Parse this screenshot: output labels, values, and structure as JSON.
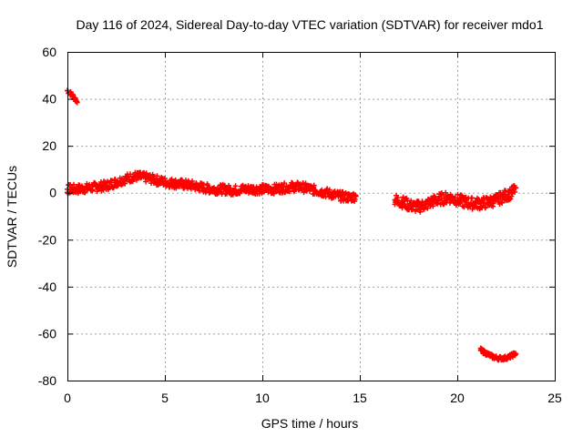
{
  "chart_data": {
    "type": "scatter",
    "title": "Day 116 of 2024, Sidereal Day-to-day VTEC variation (SDTVAR) for receiver mdo1",
    "xlabel": "GPS time / hours",
    "ylabel": "SDTVAR / TECUs",
    "xlim": [
      0,
      25
    ],
    "ylim": [
      -80,
      60
    ],
    "xticks": [
      0,
      5,
      10,
      15,
      20,
      25
    ],
    "yticks": [
      -80,
      -60,
      -40,
      -20,
      0,
      20,
      40,
      60
    ],
    "grid": true,
    "marker": "+",
    "color": "#ff0000",
    "series": [
      {
        "name": "seg1",
        "spread": 1.0,
        "points": [
          [
            0.0,
            43.5
          ],
          [
            0.2,
            42
          ],
          [
            0.4,
            40
          ],
          [
            0.5,
            38.5
          ]
        ]
      },
      {
        "name": "seg2",
        "spread": 2.0,
        "points": [
          [
            0.0,
            1.5
          ],
          [
            0.5,
            1.5
          ],
          [
            1.0,
            2
          ],
          [
            1.5,
            2.5
          ],
          [
            2.0,
            3
          ],
          [
            2.5,
            4.5
          ],
          [
            3.0,
            6
          ],
          [
            3.5,
            7
          ],
          [
            4.0,
            6.5
          ],
          [
            4.5,
            5.5
          ],
          [
            5.0,
            4.5
          ],
          [
            5.5,
            4
          ],
          [
            6.0,
            3.5
          ],
          [
            6.5,
            3
          ],
          [
            7.0,
            2
          ],
          [
            7.5,
            1.5
          ],
          [
            8.0,
            1.5
          ],
          [
            8.5,
            1
          ],
          [
            9.0,
            1.5
          ],
          [
            9.5,
            1.5
          ],
          [
            10.0,
            1.5
          ],
          [
            10.5,
            1.5
          ],
          [
            11.0,
            2
          ],
          [
            11.5,
            2.5
          ],
          [
            12.0,
            2.5
          ],
          [
            12.5,
            1.5
          ],
          [
            13.0,
            0.5
          ],
          [
            13.5,
            -0.5
          ],
          [
            14.0,
            -1.5
          ],
          [
            14.5,
            -2
          ],
          [
            14.8,
            -1.5
          ]
        ]
      },
      {
        "name": "seg3",
        "spread": 2.5,
        "points": [
          [
            16.8,
            -3
          ],
          [
            17.2,
            -4
          ],
          [
            17.6,
            -5.5
          ],
          [
            18.0,
            -6
          ],
          [
            18.4,
            -5
          ],
          [
            18.8,
            -3.5
          ],
          [
            19.2,
            -2.5
          ],
          [
            19.6,
            -2
          ],
          [
            20.0,
            -3
          ],
          [
            20.4,
            -4
          ],
          [
            20.8,
            -4.5
          ],
          [
            21.2,
            -4.5
          ],
          [
            21.6,
            -4
          ],
          [
            22.0,
            -3
          ],
          [
            22.4,
            -1.5
          ],
          [
            22.8,
            0
          ],
          [
            23.0,
            2
          ]
        ]
      },
      {
        "name": "seg4",
        "spread": 0.8,
        "points": [
          [
            21.2,
            -67
          ],
          [
            21.5,
            -68.5
          ],
          [
            21.8,
            -69.8
          ],
          [
            22.1,
            -70.5
          ],
          [
            22.4,
            -70.5
          ],
          [
            22.7,
            -69.8
          ],
          [
            23.0,
            -68.5
          ]
        ]
      }
    ]
  }
}
